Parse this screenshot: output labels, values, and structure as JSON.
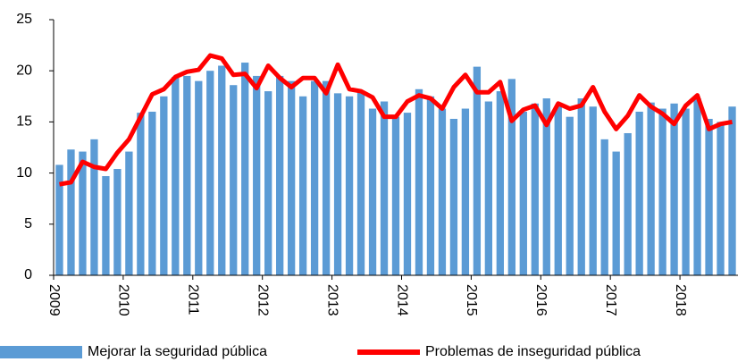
{
  "chart_data": {
    "type": "bar_line",
    "categories": [
      "2009",
      null,
      null,
      null,
      null,
      null,
      "2010",
      null,
      null,
      null,
      null,
      null,
      "2011",
      null,
      null,
      null,
      null,
      null,
      "2012",
      null,
      null,
      null,
      null,
      null,
      "2013",
      null,
      null,
      null,
      null,
      null,
      "2014",
      null,
      null,
      null,
      null,
      null,
      "2015",
      null,
      null,
      null,
      null,
      null,
      "2016",
      null,
      null,
      null,
      null,
      null,
      "2017",
      null,
      null,
      null,
      null,
      null,
      "2018",
      null,
      null,
      null,
      null
    ],
    "series": [
      {
        "name": "Mejorar la seguridad pública",
        "type": "bar",
        "color": "#5b9bd5",
        "values": [
          10.8,
          12.3,
          12.1,
          13.3,
          9.7,
          10.4,
          12.1,
          15.9,
          16.0,
          17.5,
          19.4,
          19.5,
          19.0,
          20.0,
          20.5,
          18.6,
          20.8,
          19.5,
          18.0,
          19.5,
          19.0,
          17.5,
          19.0,
          19.0,
          17.8,
          17.5,
          18.0,
          16.3,
          17.0,
          15.5,
          15.9,
          18.2,
          17.5,
          16.3,
          15.3,
          16.3,
          20.4,
          17.0,
          18.0,
          19.2,
          16.0,
          16.8,
          17.3,
          16.5,
          15.5,
          17.3,
          16.5,
          13.3,
          12.1,
          13.9,
          16.0,
          16.9,
          16.3,
          16.8,
          16.3,
          17.3,
          15.3,
          15.0,
          16.5
        ]
      },
      {
        "name": "Problemas de inseguridad pública",
        "type": "line",
        "color": "#ff0000",
        "values": [
          8.9,
          9.1,
          11.1,
          10.6,
          10.4,
          12.0,
          13.3,
          15.5,
          17.7,
          18.2,
          19.4,
          19.9,
          20.1,
          21.5,
          21.2,
          19.6,
          19.7,
          18.3,
          20.5,
          19.3,
          18.4,
          19.3,
          19.3,
          17.8,
          20.6,
          18.2,
          18.0,
          17.4,
          15.5,
          15.5,
          17.0,
          17.6,
          17.3,
          16.3,
          18.4,
          19.6,
          17.9,
          17.9,
          18.9,
          15.1,
          16.2,
          16.6,
          14.7,
          16.8,
          16.3,
          16.6,
          18.4,
          16.0,
          14.3,
          15.6,
          17.6,
          16.5,
          15.8,
          14.8,
          16.6,
          17.6,
          14.3,
          14.8,
          15.0
        ]
      }
    ],
    "ylim": [
      0,
      25
    ],
    "yticks": [
      0,
      5,
      10,
      15,
      20,
      25
    ],
    "grid": false,
    "legend": "bottom"
  }
}
